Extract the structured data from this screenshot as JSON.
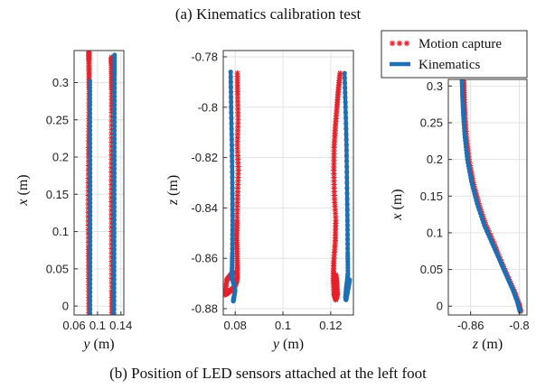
{
  "captions": {
    "top": "(a) Kinematics calibration test",
    "bottom": "(b) Position of LED sensors attached at the left foot"
  },
  "colors": {
    "motion_capture": "#e8202a",
    "kinematics": "#1f6fb4",
    "grid": "#e2e2e2",
    "axes": "#333333"
  },
  "chart_data": [
    {
      "type": "line",
      "xlabel_var": "y",
      "xlabel_unit": "(m)",
      "ylabel_var": "x",
      "ylabel_unit": "(m)",
      "xlim": [
        0.06,
        0.145
      ],
      "ylim": [
        -0.012,
        0.343
      ],
      "xticks": [
        0.06,
        0.1,
        0.14
      ],
      "xtick_labels": [
        "0.06",
        "0.1",
        "0.14"
      ],
      "yticks": [
        0,
        0.05,
        0.1,
        0.15,
        0.2,
        0.25,
        0.3
      ],
      "ytick_labels": [
        "0",
        "0.05",
        "0.1",
        "0.15",
        "0.2",
        "0.25",
        "0.3"
      ],
      "grid": true,
      "series": [
        {
          "name": "Motion capture",
          "style": "star",
          "x": [
            0.0853,
            0.0851,
            0.0848,
            0.0845,
            0.0841,
            0.0842,
            0.0846,
            0.0851,
            0.0855,
            0.0856,
            0.0855,
            0.0853,
            0.0852
          ],
          "y": [
            -0.009,
            0.02,
            0.05,
            0.08,
            0.12,
            0.16,
            0.2,
            0.23,
            0.26,
            0.29,
            0.315,
            0.33,
            0.341
          ]
        },
        {
          "name": "Motion capture",
          "style": "star",
          "x": [
            0.1246,
            0.1244,
            0.1242,
            0.124,
            0.1238,
            0.1238,
            0.124,
            0.1242,
            0.1242,
            0.1241,
            0.124,
            0.124
          ],
          "y": [
            -0.009,
            0.02,
            0.06,
            0.1,
            0.14,
            0.18,
            0.22,
            0.26,
            0.29,
            0.31,
            0.325,
            0.334
          ]
        },
        {
          "name": "Kinematics",
          "style": "line",
          "x": [
            0.0872,
            0.0872,
            0.0873,
            0.0873,
            0.0873,
            0.0872,
            0.0871,
            0.087,
            0.0869
          ],
          "y": [
            -0.01,
            0.03,
            0.07,
            0.11,
            0.15,
            0.19,
            0.23,
            0.27,
            0.302
          ]
        },
        {
          "name": "Kinematics",
          "style": "line",
          "x": [
            0.1282,
            0.1283,
            0.1284,
            0.1285,
            0.1286,
            0.1287,
            0.1288,
            0.1289,
            0.129,
            0.1291
          ],
          "y": [
            -0.01,
            0.03,
            0.07,
            0.11,
            0.15,
            0.19,
            0.23,
            0.27,
            0.31,
            0.337
          ]
        }
      ]
    },
    {
      "type": "line",
      "xlabel_var": "y",
      "xlabel_unit": "(m)",
      "ylabel_var": "z",
      "ylabel_unit": "(m)",
      "xlim": [
        0.075,
        0.1295
      ],
      "ylim": [
        -0.8825,
        -0.7775
      ],
      "xticks": [
        0.08,
        0.1,
        0.12
      ],
      "xtick_labels": [
        "0.08",
        "0.1",
        "0.12"
      ],
      "yticks": [
        -0.88,
        -0.86,
        -0.84,
        -0.82,
        -0.8,
        -0.78
      ],
      "ytick_labels": [
        "-0.88",
        "-0.86",
        "-0.84",
        "-0.82",
        "-0.8",
        "-0.78"
      ],
      "grid": true,
      "series": [
        {
          "name": "Motion capture",
          "style": "star",
          "x": [
            0.0809,
            0.081,
            0.0812,
            0.0809,
            0.0813,
            0.081,
            0.0808,
            0.0806,
            0.0808,
            0.0809,
            0.0808,
            0.0805,
            0.0796,
            0.0784,
            0.0772,
            0.0757,
            0.0765,
            0.0782,
            0.0792
          ],
          "y": [
            -0.7865,
            -0.795,
            -0.805,
            -0.815,
            -0.825,
            -0.835,
            -0.845,
            -0.852,
            -0.858,
            -0.863,
            -0.867,
            -0.8695,
            -0.8715,
            -0.8725,
            -0.8735,
            -0.8745,
            -0.8685,
            -0.8665,
            -0.8655
          ]
        },
        {
          "name": "Motion capture",
          "style": "star",
          "x": [
            0.1239,
            0.1232,
            0.1226,
            0.1219,
            0.1214,
            0.1213,
            0.1215,
            0.1221,
            0.1219,
            0.1213,
            0.1211,
            0.1214,
            0.1221,
            0.1228,
            0.1225,
            0.1221
          ],
          "y": [
            -0.7865,
            -0.793,
            -0.8,
            -0.808,
            -0.816,
            -0.825,
            -0.835,
            -0.845,
            -0.853,
            -0.861,
            -0.868,
            -0.874,
            -0.8765,
            -0.874,
            -0.87,
            -0.8665
          ]
        },
        {
          "name": "Kinematics",
          "style": "line",
          "x": [
            0.0781,
            0.0783,
            0.0786,
            0.0788,
            0.0789,
            0.0788,
            0.0786,
            0.0787,
            0.0792,
            0.0797,
            0.0799,
            0.0795,
            0.0792,
            0.0794
          ],
          "y": [
            -0.786,
            -0.8,
            -0.815,
            -0.83,
            -0.845,
            -0.858,
            -0.866,
            -0.868,
            -0.8695,
            -0.871,
            -0.873,
            -0.8755,
            -0.877,
            -0.8755
          ]
        },
        {
          "name": "Kinematics",
          "style": "line",
          "x": [
            0.1258,
            0.1262,
            0.1266,
            0.1268,
            0.127,
            0.1271,
            0.1272,
            0.1269,
            0.1265,
            0.1262,
            0.1264,
            0.1269,
            0.1275,
            0.1279
          ],
          "y": [
            -0.7865,
            -0.8,
            -0.815,
            -0.83,
            -0.845,
            -0.858,
            -0.866,
            -0.869,
            -0.872,
            -0.8755,
            -0.8765,
            -0.874,
            -0.871,
            -0.8685
          ]
        }
      ]
    },
    {
      "type": "line",
      "xlabel_var": "z",
      "xlabel_unit": "(m)",
      "ylabel_var": "x",
      "ylabel_unit": "(m)",
      "xlim": [
        -0.8875,
        -0.7905
      ],
      "ylim": [
        -0.012,
        0.309
      ],
      "xticks": [
        -0.86,
        -0.8
      ],
      "xtick_labels": [
        "-0.86",
        "-0.8"
      ],
      "yticks": [
        0,
        0.05,
        0.1,
        0.15,
        0.2,
        0.25,
        0.3
      ],
      "ytick_labels": [
        "0",
        "0.05",
        "0.1",
        "0.15",
        "0.2",
        "0.25",
        "0.3"
      ],
      "grid": true,
      "series": [
        {
          "name": "Motion capture",
          "style": "star",
          "x": [
            -0.7982,
            -0.801,
            -0.806,
            -0.814,
            -0.822,
            -0.831,
            -0.841,
            -0.85,
            -0.857,
            -0.862,
            -0.865,
            -0.867,
            -0.868,
            -0.8685
          ],
          "y": [
            -0.007,
            0.005,
            0.02,
            0.04,
            0.06,
            0.085,
            0.11,
            0.14,
            0.17,
            0.2,
            0.23,
            0.26,
            0.285,
            0.307
          ]
        },
        {
          "name": "Kinematics",
          "style": "line",
          "x": [
            -0.7992,
            -0.802,
            -0.807,
            -0.815,
            -0.823,
            -0.833,
            -0.843,
            -0.852,
            -0.859,
            -0.864,
            -0.867,
            -0.869,
            -0.87,
            -0.8706
          ],
          "y": [
            -0.007,
            0.005,
            0.02,
            0.04,
            0.06,
            0.085,
            0.11,
            0.14,
            0.17,
            0.2,
            0.23,
            0.26,
            0.285,
            0.307
          ]
        }
      ]
    }
  ],
  "legend": {
    "items": [
      "Motion capture",
      "Kinematics"
    ]
  }
}
